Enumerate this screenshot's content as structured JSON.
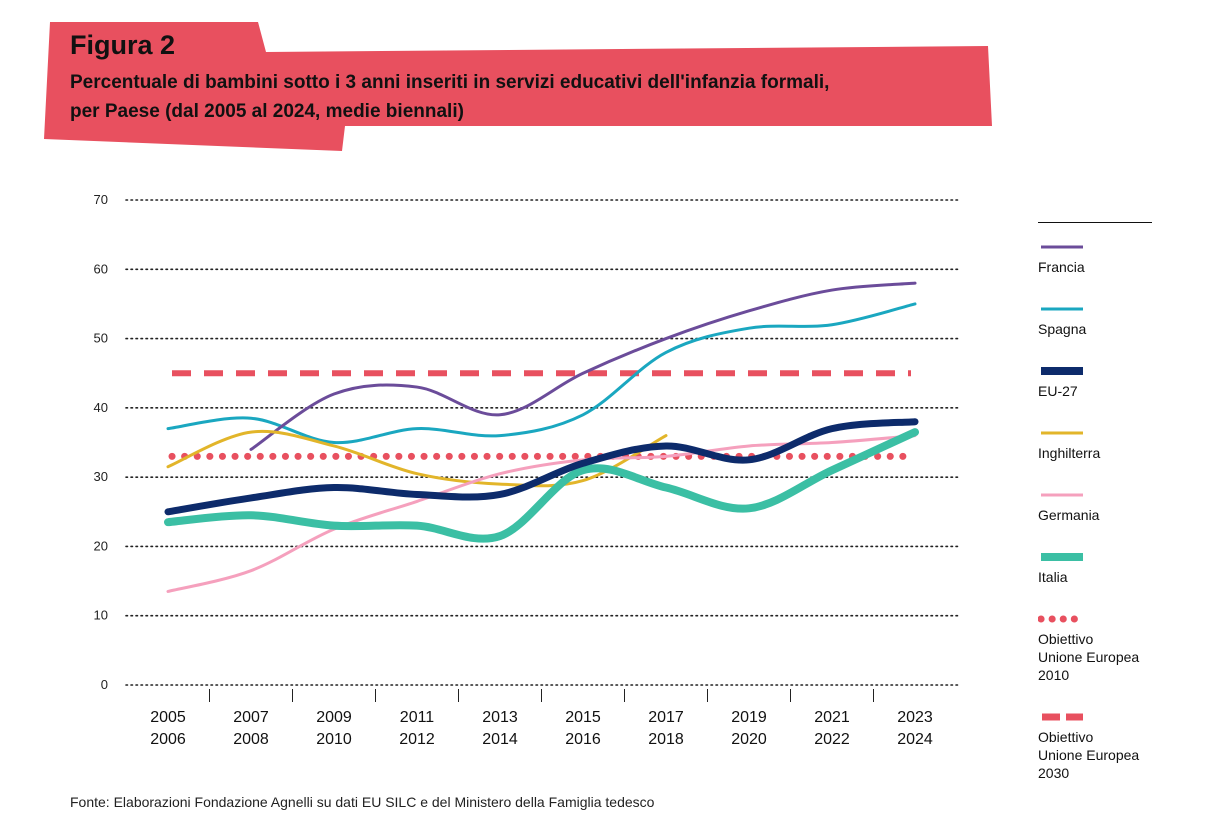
{
  "figure": {
    "label": "Figura 2",
    "subtitle_line1": "Percentuale di bambini sotto i 3 anni inseriti in servizi educativi dell'infanzia formali,",
    "subtitle_line2": "per Paese (dal 2005 al 2024, medie biennali)",
    "banner_color": "#e8505f"
  },
  "source": "Fonte: Elaborazioni Fondazione Agnelli su dati EU SILC e del Ministero della Famiglia tedesco",
  "chart_data": {
    "type": "line",
    "categories": [
      [
        "2005",
        "2006"
      ],
      [
        "2007",
        "2008"
      ],
      [
        "2009",
        "2010"
      ],
      [
        "2011",
        "2012"
      ],
      [
        "2013",
        "2014"
      ],
      [
        "2015",
        "2016"
      ],
      [
        "2017",
        "2018"
      ],
      [
        "2019",
        "2020"
      ],
      [
        "2021",
        "2022"
      ],
      [
        "2023",
        "2024"
      ]
    ],
    "y_ticks": [
      0,
      10,
      20,
      30,
      40,
      50,
      60,
      70
    ],
    "ylim": [
      0,
      70
    ],
    "grid": "dotted horizontal",
    "legend_position": "right",
    "series": [
      {
        "name": "Francia",
        "color": "#6b4c9a",
        "width": 3,
        "style": "solid",
        "values": [
          null,
          34,
          42,
          43,
          39,
          45,
          50,
          54,
          57,
          58
        ]
      },
      {
        "name": "Spagna",
        "color": "#1aa7c0",
        "width": 3,
        "style": "solid",
        "values": [
          37,
          38.5,
          35,
          37,
          36,
          39,
          48,
          51.5,
          52,
          55
        ]
      },
      {
        "name": "EU-27",
        "color": "#0d2b6b",
        "width": 7,
        "style": "solid",
        "values": [
          25,
          27,
          28.5,
          27.5,
          27.5,
          32,
          34.5,
          32.5,
          37,
          38
        ]
      },
      {
        "name": "Inghilterra",
        "color": "#e2b52a",
        "width": 3,
        "style": "solid",
        "values": [
          31.5,
          36.5,
          34.5,
          30.5,
          29,
          29.5,
          36,
          null,
          null,
          null
        ]
      },
      {
        "name": "Germania",
        "color": "#f5a0bd",
        "width": 3,
        "style": "solid",
        "values": [
          13.5,
          16.5,
          22.5,
          26.5,
          30.5,
          32.5,
          33,
          34.5,
          35,
          36
        ]
      },
      {
        "name": "Italia",
        "color": "#3bbfa4",
        "width": 8,
        "style": "solid",
        "values": [
          23.5,
          24.5,
          23,
          23,
          21.5,
          31,
          28.5,
          25.5,
          31,
          36.5
        ]
      },
      {
        "name": "Obiettivo Unione Europea 2010",
        "color": "#e8505f",
        "width": 6,
        "style": "dotted",
        "values": [
          33,
          33,
          33,
          33,
          33,
          33,
          33,
          33,
          33,
          33
        ]
      },
      {
        "name": "Obiettivo Unione Europea 2030",
        "color": "#e8505f",
        "width": 6,
        "style": "dashed",
        "values": [
          45,
          45,
          45,
          45,
          45,
          45,
          45,
          45,
          45,
          45
        ]
      }
    ]
  },
  "legend": {
    "items": [
      {
        "label_lines": [
          "Francia"
        ],
        "color": "#6b4c9a",
        "style": "thin"
      },
      {
        "label_lines": [
          "Spagna"
        ],
        "color": "#1aa7c0",
        "style": "thin"
      },
      {
        "label_lines": [
          "EU-27"
        ],
        "color": "#0d2b6b",
        "style": "thick"
      },
      {
        "label_lines": [
          "Inghilterra"
        ],
        "color": "#e2b52a",
        "style": "thin"
      },
      {
        "label_lines": [
          "Germania"
        ],
        "color": "#f5a0bd",
        "style": "thin"
      },
      {
        "label_lines": [
          "Italia"
        ],
        "color": "#3bbfa4",
        "style": "thick"
      },
      {
        "label_lines": [
          "Obiettivo",
          "Unione Europea",
          "2010"
        ],
        "color": "#e8505f",
        "style": "dotted"
      },
      {
        "label_lines": [
          "Obiettivo",
          "Unione Europea",
          "2030"
        ],
        "color": "#e8505f",
        "style": "dashed"
      }
    ]
  }
}
